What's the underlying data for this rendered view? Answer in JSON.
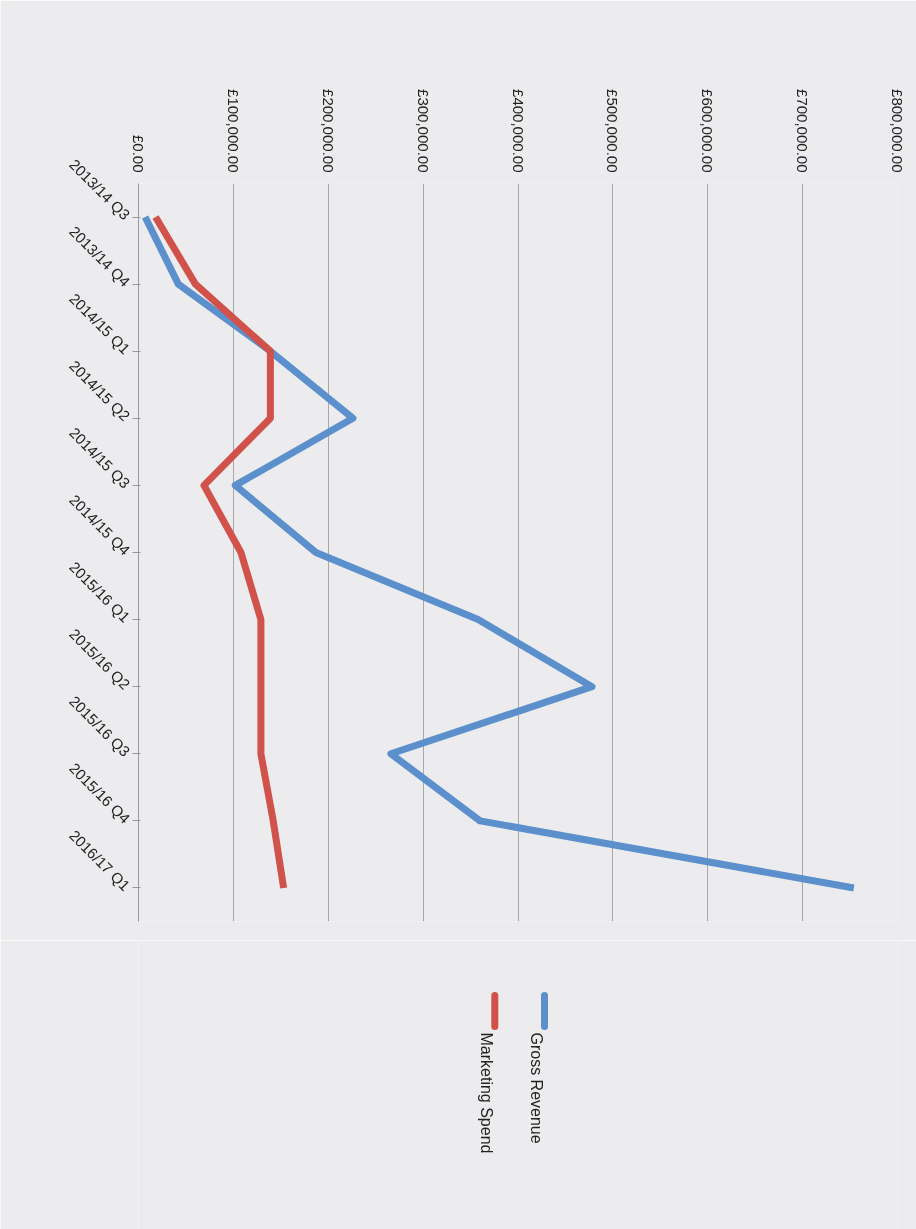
{
  "chart_data": {
    "type": "line",
    "orientation": "horizontal",
    "categories": [
      "2013/14 Q3",
      "2013/14 Q4",
      "2014/15 Q1",
      "2014/15 Q2",
      "2014/15 Q3",
      "2014/15 Q4",
      "2015/16 Q1",
      "2015/16 Q2",
      "2015/16 Q3",
      "2015/16 Q4",
      "2016/17 Q1"
    ],
    "series": [
      {
        "name": "Gross Revenue",
        "color": "#5b90cc",
        "values": [
          7000,
          42000,
          139000,
          226000,
          102000,
          187000,
          358000,
          478000,
          266000,
          360000,
          754000
        ]
      },
      {
        "name": "Marketing Spend",
        "color": "#d0524b",
        "values": [
          18000,
          60000,
          139000,
          139000,
          69000,
          108000,
          129000,
          129000,
          129000,
          142000,
          153000
        ]
      }
    ],
    "xlim": [
      0,
      800000
    ],
    "xticks": [
      {
        "value": 0,
        "label": "£0.00"
      },
      {
        "value": 100000,
        "label": "£100,000.00"
      },
      {
        "value": 200000,
        "label": "£200,000.00"
      },
      {
        "value": 300000,
        "label": "£300,000.00"
      },
      {
        "value": 400000,
        "label": "£400,000.00"
      },
      {
        "value": 500000,
        "label": "£500,000.00"
      },
      {
        "value": 600000,
        "label": "£600,000.00"
      },
      {
        "value": 700000,
        "label": "£700,000.00"
      },
      {
        "value": 800000,
        "label": "£800,000.00"
      }
    ],
    "grid": "x",
    "legend": "bottom",
    "line_style": "solid",
    "marker": "none"
  }
}
